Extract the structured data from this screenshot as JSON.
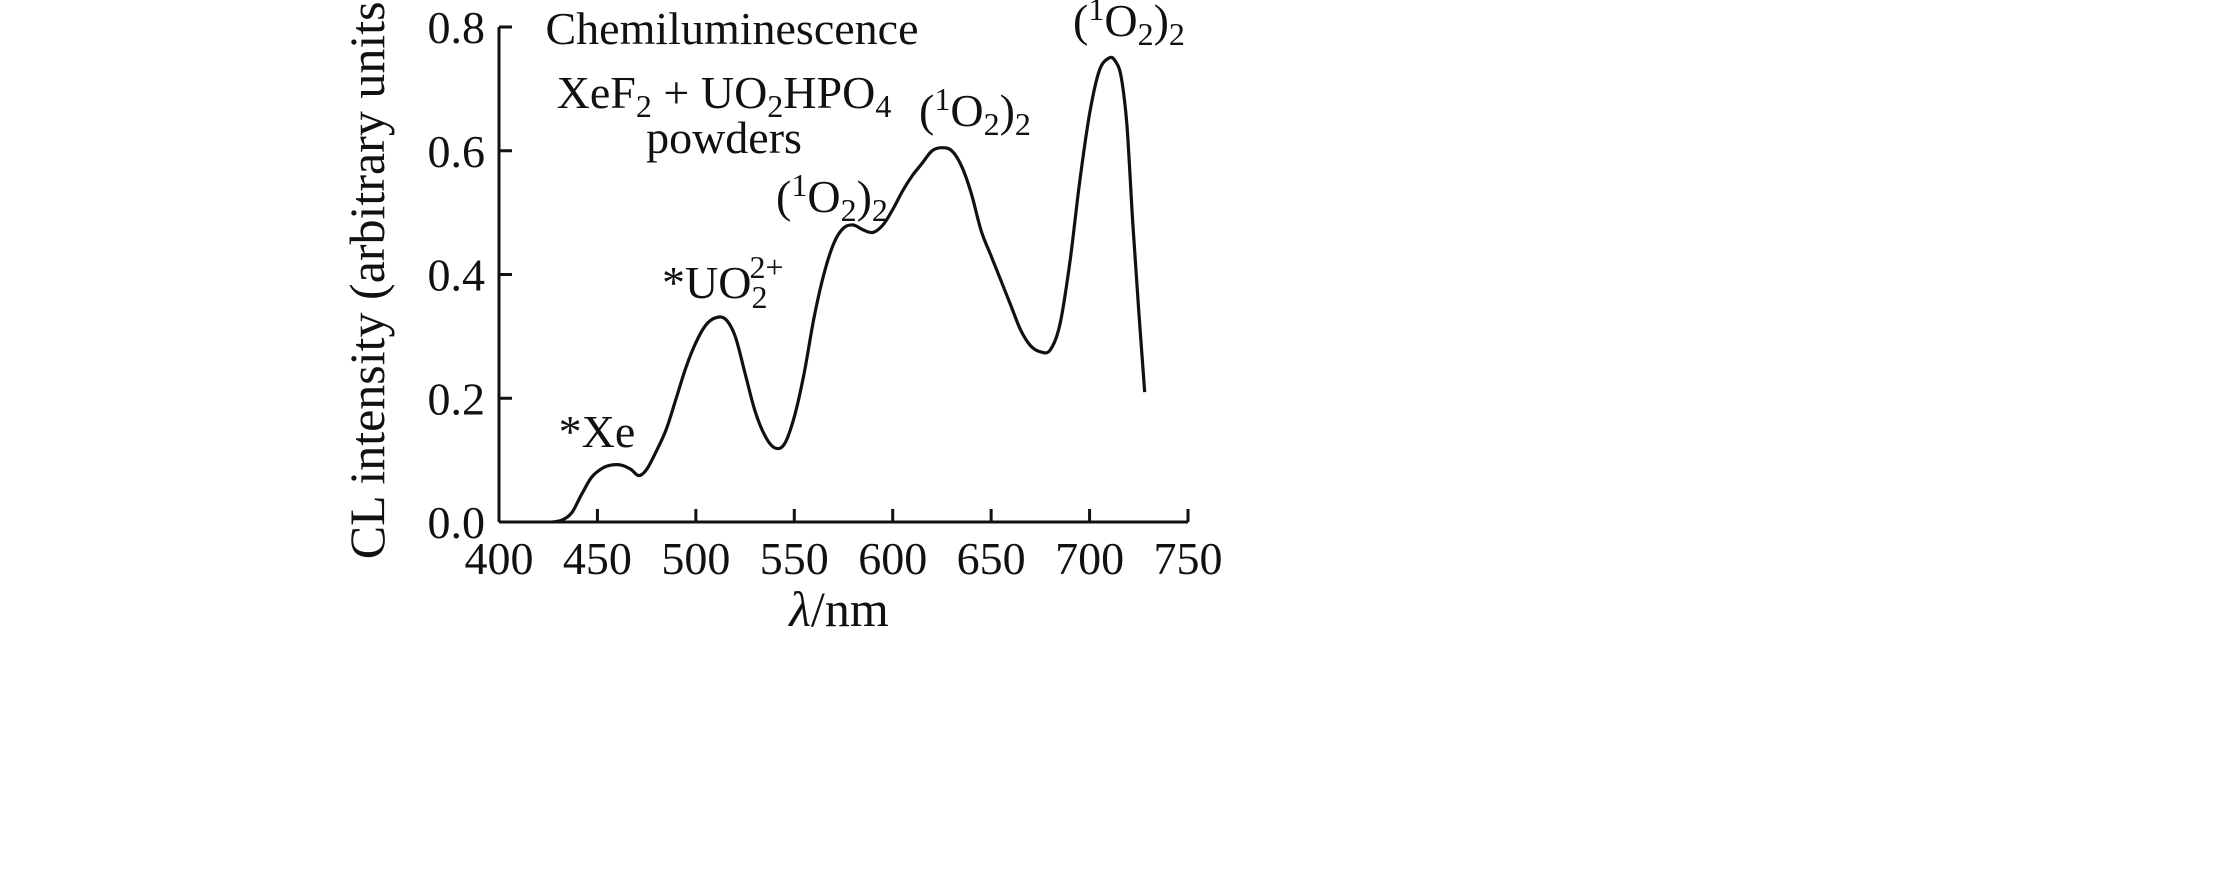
{
  "chart_data": {
    "type": "line",
    "xlabel_symbol": "λ",
    "xlabel_unit": "/nm",
    "ylabel": "CL intensity (arbitrary units)",
    "xlim": [
      400,
      750
    ],
    "ylim": [
      0,
      0.8
    ],
    "x_ticks": [
      400,
      450,
      500,
      550,
      600,
      650,
      700,
      750
    ],
    "y_ticks": [
      "0.0",
      "0.2",
      "0.4",
      "0.6",
      "0.8"
    ],
    "grid": false,
    "annotation_lines": {
      "title": "Chemiluminescence",
      "reaction_base1": "XeF",
      "reaction_sub1": "2",
      "reaction_mid": " + UO",
      "reaction_sub2": "2",
      "reaction_mid2": "HPO",
      "reaction_sub3": "4",
      "reaction_line2": "powders"
    },
    "peak_labels": {
      "xe": "*Xe",
      "uranyl_main": "*UO",
      "uranyl_sub": "2",
      "uranyl_sup": "2+",
      "o2_open": "(",
      "o2_sup": "1",
      "o2_mid": "O",
      "o2_sub": "2",
      "o2_close": ")",
      "o2_outer_sub": "2"
    },
    "series": [
      {
        "x": [
          427,
          432,
          437,
          442,
          447,
          452,
          457,
          462,
          467,
          471,
          475,
          480,
          485,
          490,
          495,
          500,
          505,
          510,
          515,
          520,
          525,
          530,
          535,
          540,
          545,
          550,
          555,
          560,
          565,
          570,
          575,
          580,
          585,
          590,
          595,
          600,
          605,
          610,
          615,
          620,
          625,
          630,
          635,
          640,
          645,
          650,
          655,
          660,
          665,
          670,
          675,
          680,
          685,
          690,
          695,
          700,
          705,
          710,
          713,
          716,
          719,
          722,
          725,
          728
        ],
        "y": [
          0.0,
          0.003,
          0.015,
          0.045,
          0.072,
          0.086,
          0.092,
          0.092,
          0.085,
          0.075,
          0.085,
          0.115,
          0.15,
          0.2,
          0.25,
          0.29,
          0.318,
          0.33,
          0.328,
          0.3,
          0.24,
          0.18,
          0.14,
          0.12,
          0.126,
          0.17,
          0.24,
          0.33,
          0.4,
          0.45,
          0.475,
          0.48,
          0.472,
          0.468,
          0.48,
          0.505,
          0.535,
          0.56,
          0.58,
          0.6,
          0.605,
          0.6,
          0.575,
          0.53,
          0.47,
          0.43,
          0.39,
          0.35,
          0.31,
          0.285,
          0.275,
          0.278,
          0.32,
          0.42,
          0.55,
          0.66,
          0.73,
          0.75,
          0.745,
          0.72,
          0.64,
          0.48,
          0.34,
          0.21
        ]
      }
    ]
  }
}
